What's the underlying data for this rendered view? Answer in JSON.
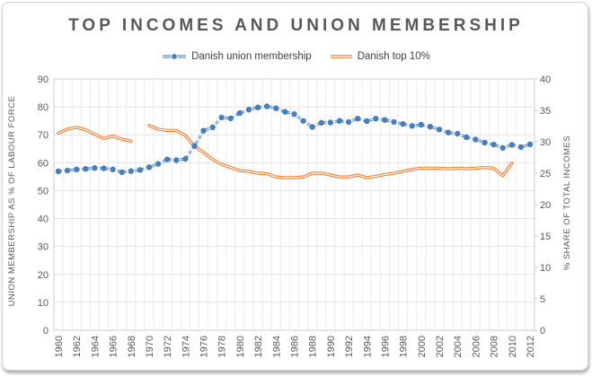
{
  "chart_data": {
    "type": "line",
    "title": "TOP INCOMES AND UNION MEMBERSHIP",
    "years": [
      1960,
      1961,
      1962,
      1963,
      1964,
      1965,
      1966,
      1967,
      1968,
      1969,
      1970,
      1971,
      1972,
      1973,
      1974,
      1975,
      1976,
      1977,
      1978,
      1979,
      1980,
      1981,
      1982,
      1983,
      1984,
      1985,
      1986,
      1987,
      1988,
      1989,
      1990,
      1991,
      1992,
      1993,
      1994,
      1995,
      1996,
      1997,
      1998,
      1999,
      2000,
      2001,
      2002,
      2003,
      2004,
      2005,
      2006,
      2007,
      2008,
      2009,
      2010,
      2011,
      2012
    ],
    "x_tick_labels": [
      "1960",
      "1962",
      "1964",
      "1966",
      "1968",
      "1970",
      "1972",
      "1974",
      "1976",
      "1978",
      "1980",
      "1982",
      "1984",
      "1986",
      "1988",
      "1990",
      "1992",
      "1994",
      "1996",
      "1998",
      "2000",
      "2002",
      "2004",
      "2006",
      "2008",
      "2010",
      "2012"
    ],
    "left_axis": {
      "label": "UNION MEMBERSHIP AS % OF LABOUR FORCE",
      "min": 0,
      "max": 90,
      "ticks": [
        0,
        10,
        20,
        30,
        40,
        50,
        60,
        70,
        80,
        90
      ]
    },
    "right_axis": {
      "label": "% SHARE OF TOTAL INCOMES",
      "min": 0,
      "max": 40,
      "ticks": [
        0,
        5,
        10,
        15,
        20,
        25,
        30,
        35,
        40
      ]
    },
    "grid": true,
    "legend_position": "top",
    "series": [
      {
        "name": "Danish union membership",
        "axis": "left",
        "color": "#4a7eba",
        "style": "dashed-with-markers",
        "values": [
          56.9,
          57.2,
          57.6,
          57.8,
          58.1,
          58.0,
          57.6,
          56.6,
          57.0,
          57.4,
          58.4,
          59.6,
          61.2,
          60.9,
          61.4,
          66.0,
          71.5,
          72.7,
          76.2,
          75.9,
          77.8,
          79.0,
          79.8,
          80.2,
          79.5,
          78.2,
          77.4,
          75.0,
          72.8,
          74.3,
          74.4,
          75.0,
          74.6,
          75.8,
          74.9,
          75.8,
          75.3,
          74.6,
          73.9,
          73.2,
          73.6,
          72.9,
          71.9,
          70.8,
          70.4,
          69.1,
          68.3,
          67.2,
          66.5,
          65.3,
          66.4,
          65.6,
          66.6
        ]
      },
      {
        "name": "Danish top 10%",
        "axis": "right",
        "color": "#ed7d31",
        "style": "double-line",
        "values": [
          31.4,
          32.0,
          32.3,
          31.9,
          31.2,
          30.5,
          30.9,
          30.4,
          30.1,
          null,
          32.6,
          32.0,
          31.8,
          31.8,
          31.0,
          29.3,
          28.3,
          27.2,
          26.4,
          25.9,
          25.4,
          25.3,
          25.0,
          24.9,
          24.4,
          24.3,
          24.3,
          24.4,
          25.0,
          25.0,
          24.7,
          24.4,
          24.4,
          24.7,
          24.3,
          24.5,
          24.8,
          25.0,
          25.3,
          25.6,
          25.8,
          25.8,
          25.8,
          25.7,
          25.8,
          25.7,
          25.8,
          25.9,
          25.8,
          24.6,
          26.6,
          null,
          null
        ]
      }
    ],
    "colors": {
      "title_text": "#595959",
      "axis_text": "#595959",
      "legend_text": "#3f3f3f",
      "gridline_vertical": "#ececec",
      "gridline_horizontal": "#e2e2e2",
      "plot_border": "#d6d6d6"
    }
  }
}
